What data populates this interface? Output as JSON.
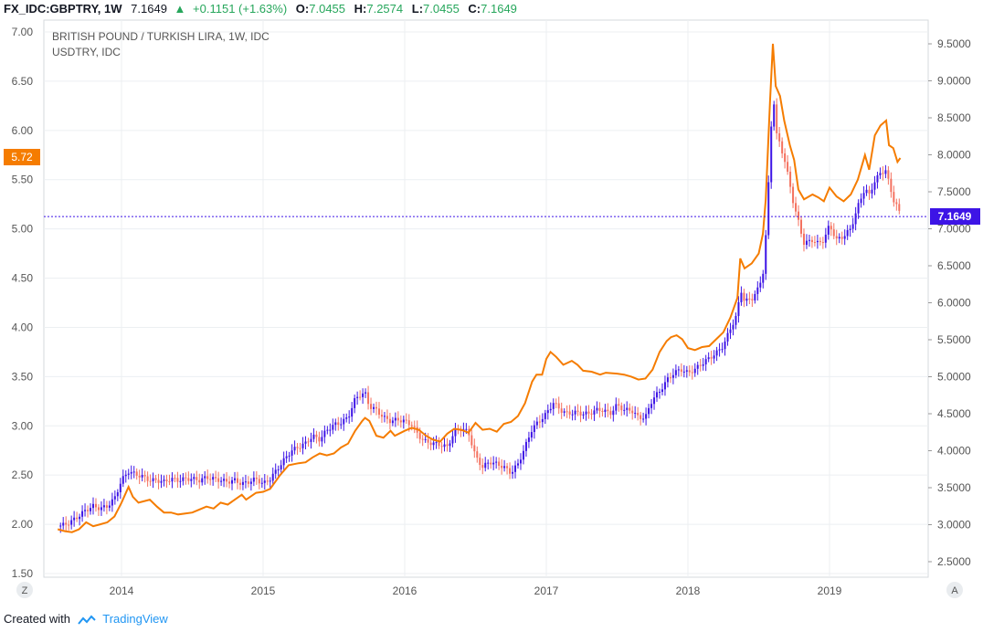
{
  "header": {
    "symbol": "FX_IDC:GBPTRY, 1W",
    "price": "7.1649",
    "change": "+0.1151 (+1.63%)",
    "o_label": "O:",
    "o_value": "7.0455",
    "h_label": "H:",
    "h_value": "7.2574",
    "l_label": "L:",
    "l_value": "7.0455",
    "c_label": "C:",
    "c_value": "7.1649"
  },
  "legend": {
    "main": "BRITISH POUND / TURKISH LIRA, 1W, IDC",
    "compare": "USDTRY, IDC"
  },
  "footer": {
    "created_with": "Created with",
    "brand": "TradingView"
  },
  "corner_buttons": {
    "left": "Z",
    "right": "A"
  },
  "colors": {
    "up_candle": "#3d14e6",
    "down_candle": "#f4715f",
    "usdtry_line": "#f57c00",
    "last_price_badge": "#3d14e6",
    "compare_badge": "#f57c00",
    "grid": "#eceff2",
    "price_line": "#3d14e6"
  },
  "chart_data": {
    "type": "candlestick-with-line",
    "x_axis": {
      "ticks": [
        "2014",
        "2015",
        "2016",
        "2017",
        "2018",
        "2019"
      ]
    },
    "left_axis": {
      "series": "USDTRY",
      "range": [
        1.5,
        7.0
      ],
      "ticks": [
        "1.50",
        "2.00",
        "2.50",
        "3.00",
        "3.50",
        "4.00",
        "4.50",
        "5.00",
        "5.50",
        "6.00",
        "6.50",
        "7.00"
      ]
    },
    "right_axis": {
      "series": "GBPTRY",
      "range": [
        2.5,
        9.5
      ],
      "ticks": [
        "2.5000",
        "3.0000",
        "3.5000",
        "4.0000",
        "4.5000",
        "5.0000",
        "5.5000",
        "6.0000",
        "6.5000",
        "7.0000",
        "7.5000",
        "8.0000",
        "8.5000",
        "9.0000",
        "9.5000"
      ]
    },
    "last_values": {
      "usdtry": "5.72",
      "gbptry": "7.1649"
    },
    "usdtry_series": [
      [
        2013.55,
        1.95
      ],
      [
        2013.6,
        1.93
      ],
      [
        2013.65,
        1.92
      ],
      [
        2013.7,
        1.95
      ],
      [
        2013.75,
        2.02
      ],
      [
        2013.8,
        1.98
      ],
      [
        2013.85,
        2.0
      ],
      [
        2013.9,
        2.02
      ],
      [
        2013.95,
        2.08
      ],
      [
        2014.0,
        2.22
      ],
      [
        2014.05,
        2.38
      ],
      [
        2014.08,
        2.28
      ],
      [
        2014.12,
        2.22
      ],
      [
        2014.2,
        2.25
      ],
      [
        2014.25,
        2.18
      ],
      [
        2014.3,
        2.12
      ],
      [
        2014.35,
        2.12
      ],
      [
        2014.4,
        2.1
      ],
      [
        2014.45,
        2.11
      ],
      [
        2014.5,
        2.12
      ],
      [
        2014.55,
        2.15
      ],
      [
        2014.6,
        2.18
      ],
      [
        2014.65,
        2.16
      ],
      [
        2014.7,
        2.22
      ],
      [
        2014.75,
        2.2
      ],
      [
        2014.8,
        2.25
      ],
      [
        2014.85,
        2.3
      ],
      [
        2014.88,
        2.25
      ],
      [
        2014.95,
        2.32
      ],
      [
        2015.0,
        2.33
      ],
      [
        2015.05,
        2.36
      ],
      [
        2015.08,
        2.42
      ],
      [
        2015.12,
        2.5
      ],
      [
        2015.18,
        2.6
      ],
      [
        2015.25,
        2.62
      ],
      [
        2015.3,
        2.63
      ],
      [
        2015.35,
        2.68
      ],
      [
        2015.4,
        2.72
      ],
      [
        2015.45,
        2.7
      ],
      [
        2015.5,
        2.72
      ],
      [
        2015.55,
        2.78
      ],
      [
        2015.6,
        2.82
      ],
      [
        2015.65,
        2.95
      ],
      [
        2015.7,
        3.05
      ],
      [
        2015.72,
        3.08
      ],
      [
        2015.75,
        3.05
      ],
      [
        2015.8,
        2.9
      ],
      [
        2015.85,
        2.88
      ],
      [
        2015.9,
        2.95
      ],
      [
        2015.93,
        2.9
      ],
      [
        2016.0,
        2.95
      ],
      [
        2016.05,
        2.98
      ],
      [
        2016.1,
        2.96
      ],
      [
        2016.15,
        2.9
      ],
      [
        2016.2,
        2.86
      ],
      [
        2016.25,
        2.84
      ],
      [
        2016.3,
        2.92
      ],
      [
        2016.35,
        2.97
      ],
      [
        2016.4,
        2.96
      ],
      [
        2016.45,
        2.93
      ],
      [
        2016.5,
        3.03
      ],
      [
        2016.55,
        2.96
      ],
      [
        2016.6,
        2.97
      ],
      [
        2016.65,
        2.94
      ],
      [
        2016.7,
        3.02
      ],
      [
        2016.75,
        3.04
      ],
      [
        2016.8,
        3.1
      ],
      [
        2016.85,
        3.23
      ],
      [
        2016.9,
        3.45
      ],
      [
        2016.93,
        3.52
      ],
      [
        2016.97,
        3.52
      ],
      [
        2017.0,
        3.68
      ],
      [
        2017.03,
        3.75
      ],
      [
        2017.07,
        3.7
      ],
      [
        2017.12,
        3.62
      ],
      [
        2017.18,
        3.66
      ],
      [
        2017.22,
        3.62
      ],
      [
        2017.26,
        3.56
      ],
      [
        2017.32,
        3.55
      ],
      [
        2017.38,
        3.52
      ],
      [
        2017.42,
        3.54
      ],
      [
        2017.5,
        3.53
      ],
      [
        2017.55,
        3.52
      ],
      [
        2017.6,
        3.5
      ],
      [
        2017.65,
        3.47
      ],
      [
        2017.7,
        3.48
      ],
      [
        2017.75,
        3.57
      ],
      [
        2017.8,
        3.75
      ],
      [
        2017.85,
        3.86
      ],
      [
        2017.88,
        3.9
      ],
      [
        2017.92,
        3.92
      ],
      [
        2017.96,
        3.88
      ],
      [
        2018.0,
        3.79
      ],
      [
        2018.05,
        3.77
      ],
      [
        2018.1,
        3.8
      ],
      [
        2018.15,
        3.81
      ],
      [
        2018.2,
        3.88
      ],
      [
        2018.25,
        3.95
      ],
      [
        2018.3,
        4.1
      ],
      [
        2018.35,
        4.3
      ],
      [
        2018.37,
        4.7
      ],
      [
        2018.4,
        4.6
      ],
      [
        2018.45,
        4.65
      ],
      [
        2018.5,
        4.75
      ],
      [
        2018.53,
        4.95
      ],
      [
        2018.55,
        5.3
      ],
      [
        2018.58,
        6.3
      ],
      [
        2018.6,
        6.88
      ],
      [
        2018.62,
        6.45
      ],
      [
        2018.65,
        6.35
      ],
      [
        2018.68,
        6.1
      ],
      [
        2018.72,
        5.85
      ],
      [
        2018.75,
        5.7
      ],
      [
        2018.78,
        5.4
      ],
      [
        2018.82,
        5.3
      ],
      [
        2018.88,
        5.35
      ],
      [
        2018.92,
        5.32
      ],
      [
        2018.96,
        5.28
      ],
      [
        2019.0,
        5.42
      ],
      [
        2019.05,
        5.33
      ],
      [
        2019.1,
        5.28
      ],
      [
        2019.15,
        5.35
      ],
      [
        2019.2,
        5.5
      ],
      [
        2019.25,
        5.75
      ],
      [
        2019.28,
        5.6
      ],
      [
        2019.32,
        5.95
      ],
      [
        2019.36,
        6.05
      ],
      [
        2019.4,
        6.1
      ],
      [
        2019.42,
        5.85
      ],
      [
        2019.45,
        5.82
      ],
      [
        2019.48,
        5.68
      ],
      [
        2019.5,
        5.72
      ]
    ],
    "gbptry_series": [
      [
        2013.55,
        2.98
      ],
      [
        2013.6,
        3.0
      ],
      [
        2013.65,
        3.05
      ],
      [
        2013.7,
        3.12
      ],
      [
        2013.75,
        3.2
      ],
      [
        2013.8,
        3.25
      ],
      [
        2013.85,
        3.22
      ],
      [
        2013.9,
        3.25
      ],
      [
        2013.95,
        3.35
      ],
      [
        2014.0,
        3.6
      ],
      [
        2014.05,
        3.72
      ],
      [
        2014.1,
        3.68
      ],
      [
        2014.15,
        3.65
      ],
      [
        2014.2,
        3.6
      ],
      [
        2014.25,
        3.6
      ],
      [
        2014.3,
        3.58
      ],
      [
        2014.35,
        3.62
      ],
      [
        2014.4,
        3.6
      ],
      [
        2014.45,
        3.62
      ],
      [
        2014.5,
        3.62
      ],
      [
        2014.55,
        3.6
      ],
      [
        2014.6,
        3.64
      ],
      [
        2014.65,
        3.62
      ],
      [
        2014.7,
        3.6
      ],
      [
        2014.75,
        3.58
      ],
      [
        2014.8,
        3.6
      ],
      [
        2014.85,
        3.55
      ],
      [
        2014.9,
        3.58
      ],
      [
        2014.95,
        3.62
      ],
      [
        2015.0,
        3.55
      ],
      [
        2015.05,
        3.62
      ],
      [
        2015.1,
        3.75
      ],
      [
        2015.15,
        3.88
      ],
      [
        2015.2,
        4.0
      ],
      [
        2015.25,
        4.05
      ],
      [
        2015.3,
        4.1
      ],
      [
        2015.35,
        4.2
      ],
      [
        2015.4,
        4.15
      ],
      [
        2015.45,
        4.28
      ],
      [
        2015.5,
        4.35
      ],
      [
        2015.55,
        4.38
      ],
      [
        2015.6,
        4.45
      ],
      [
        2015.65,
        4.7
      ],
      [
        2015.68,
        4.75
      ],
      [
        2015.72,
        4.78
      ],
      [
        2015.75,
        4.6
      ],
      [
        2015.8,
        4.55
      ],
      [
        2015.85,
        4.45
      ],
      [
        2015.9,
        4.4
      ],
      [
        2015.95,
        4.42
      ],
      [
        2016.0,
        4.4
      ],
      [
        2016.05,
        4.35
      ],
      [
        2016.1,
        4.2
      ],
      [
        2016.15,
        4.12
      ],
      [
        2016.2,
        4.1
      ],
      [
        2016.25,
        4.08
      ],
      [
        2016.3,
        4.05
      ],
      [
        2016.35,
        4.25
      ],
      [
        2016.4,
        4.3
      ],
      [
        2016.45,
        4.25
      ],
      [
        2016.5,
        3.92
      ],
      [
        2016.55,
        3.78
      ],
      [
        2016.6,
        3.85
      ],
      [
        2016.65,
        3.82
      ],
      [
        2016.7,
        3.78
      ],
      [
        2016.75,
        3.7
      ],
      [
        2016.8,
        3.82
      ],
      [
        2016.85,
        4.05
      ],
      [
        2016.9,
        4.3
      ],
      [
        2016.95,
        4.4
      ],
      [
        2017.0,
        4.5
      ],
      [
        2017.05,
        4.65
      ],
      [
        2017.1,
        4.55
      ],
      [
        2017.15,
        4.5
      ],
      [
        2017.2,
        4.52
      ],
      [
        2017.25,
        4.5
      ],
      [
        2017.3,
        4.5
      ],
      [
        2017.35,
        4.55
      ],
      [
        2017.4,
        4.55
      ],
      [
        2017.45,
        4.5
      ],
      [
        2017.5,
        4.62
      ],
      [
        2017.55,
        4.55
      ],
      [
        2017.6,
        4.55
      ],
      [
        2017.65,
        4.45
      ],
      [
        2017.7,
        4.45
      ],
      [
        2017.75,
        4.7
      ],
      [
        2017.8,
        4.8
      ],
      [
        2017.85,
        4.95
      ],
      [
        2017.9,
        5.05
      ],
      [
        2017.95,
        5.1
      ],
      [
        2018.0,
        5.05
      ],
      [
        2018.05,
        5.1
      ],
      [
        2018.1,
        5.18
      ],
      [
        2018.15,
        5.25
      ],
      [
        2018.2,
        5.32
      ],
      [
        2018.25,
        5.42
      ],
      [
        2018.3,
        5.65
      ],
      [
        2018.35,
        5.85
      ],
      [
        2018.37,
        6.2
      ],
      [
        2018.4,
        6.02
      ],
      [
        2018.45,
        6.05
      ],
      [
        2018.5,
        6.2
      ],
      [
        2018.53,
        6.4
      ],
      [
        2018.55,
        6.9
      ],
      [
        2018.58,
        8.0
      ],
      [
        2018.6,
        8.95
      ],
      [
        2018.62,
        8.3
      ],
      [
        2018.65,
        8.15
      ],
      [
        2018.68,
        7.95
      ],
      [
        2018.72,
        7.6
      ],
      [
        2018.75,
        7.3
      ],
      [
        2018.78,
        7.1
      ],
      [
        2018.82,
        6.8
      ],
      [
        2018.88,
        6.85
      ],
      [
        2018.92,
        6.8
      ],
      [
        2018.96,
        6.85
      ],
      [
        2019.0,
        7.05
      ],
      [
        2019.05,
        6.85
      ],
      [
        2019.1,
        6.9
      ],
      [
        2019.15,
        7.0
      ],
      [
        2019.2,
        7.3
      ],
      [
        2019.25,
        7.55
      ],
      [
        2019.28,
        7.45
      ],
      [
        2019.32,
        7.65
      ],
      [
        2019.36,
        7.75
      ],
      [
        2019.4,
        7.8
      ],
      [
        2019.42,
        7.6
      ],
      [
        2019.45,
        7.4
      ],
      [
        2019.48,
        7.3
      ],
      [
        2019.5,
        7.1649
      ]
    ]
  }
}
